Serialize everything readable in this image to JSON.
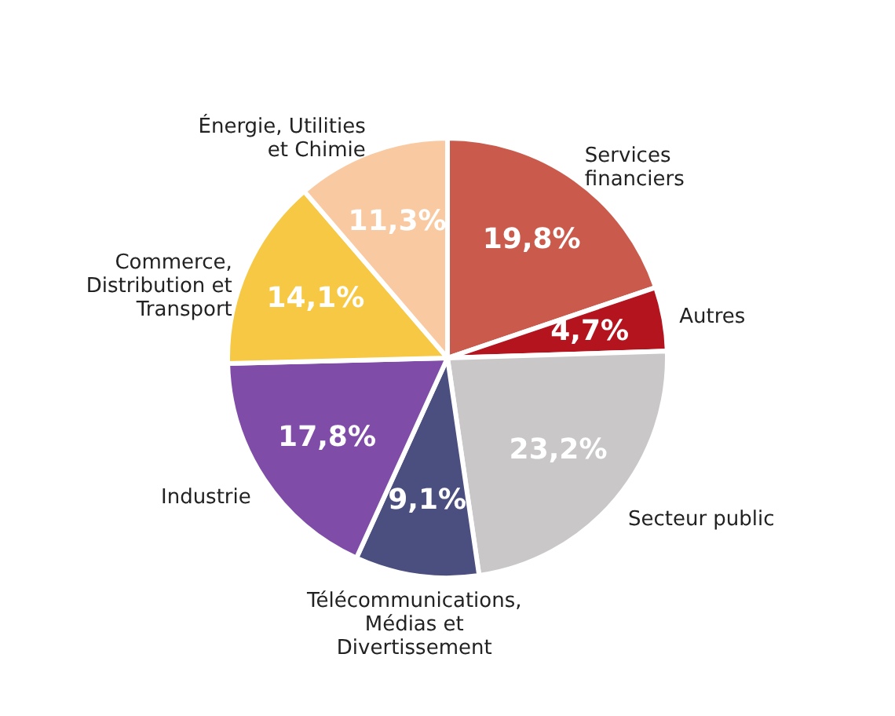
{
  "chart_data": {
    "type": "pie",
    "categories": [
      "Services financiers",
      "Autres",
      "Secteur public",
      "Télécommunications, Médias et Divertissement",
      "Industrie",
      "Commerce, Distribution et Transport",
      "Énergie, Utilities et Chimie"
    ],
    "values": [
      19.8,
      4.7,
      23.2,
      9.1,
      17.8,
      14.1,
      11.3
    ],
    "colors": [
      "#c95a4c",
      "#b3141e",
      "#c9c7c7",
      "#4b4f7f",
      "#7f4ca8",
      "#f6c843",
      "#f9caa2"
    ],
    "value_labels": [
      "19,8%",
      "4,7%",
      "23,2%",
      "9,1%",
      "17,8%",
      "14,1%",
      "11,3%"
    ],
    "legend": false
  }
}
